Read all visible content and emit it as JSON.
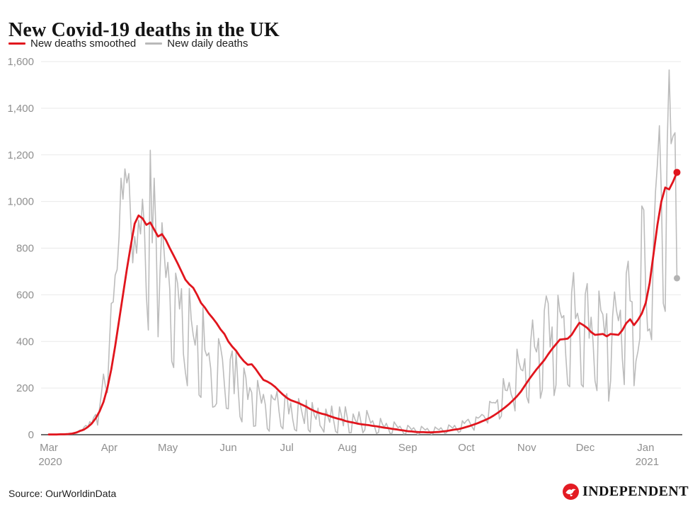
{
  "header": {
    "title": "New Covid-19 deaths in the UK"
  },
  "legend": [
    {
      "label": "New deaths smoothed",
      "color": "#e1151d"
    },
    {
      "label": "New daily deaths",
      "color": "#b9b9b9"
    }
  ],
  "footer": {
    "source": "Source: OurWorldinData",
    "brand": "INDEPENDENT",
    "brand_red": "#e31b23"
  },
  "colors": {
    "smoothed_line": "#e1151d",
    "daily_line": "#bcbcbc",
    "daily_dot": "#b3b3b3",
    "gridline": "#e9e9e9",
    "axis_line": "#3d3d3d",
    "tick_text": "#8f8f8f"
  },
  "chart_data": {
    "type": "line",
    "title": "New Covid-19 deaths in the UK",
    "xlabel": "",
    "ylabel": "",
    "x_unit": "days since 1 Mar 2020",
    "xlim_days": [
      -4,
      324
    ],
    "ylim": [
      0,
      1600
    ],
    "grid": "horizontal",
    "legend_position": "top-left",
    "yticks": [
      {
        "value": 0,
        "label": "0"
      },
      {
        "value": 200,
        "label": "200"
      },
      {
        "value": 400,
        "label": "400"
      },
      {
        "value": 600,
        "label": "600"
      },
      {
        "value": 800,
        "label": "800"
      },
      {
        "value": 1000,
        "label": "1,000"
      },
      {
        "value": 1200,
        "label": "1,200"
      },
      {
        "value": 1400,
        "label": "1,400"
      },
      {
        "value": 1600,
        "label": "1,600"
      }
    ],
    "xticks": [
      {
        "day": 0,
        "label": "Mar",
        "sub": "2020"
      },
      {
        "day": 31,
        "label": "Apr"
      },
      {
        "day": 61,
        "label": "May"
      },
      {
        "day": 92,
        "label": "Jun"
      },
      {
        "day": 122,
        "label": "Jul"
      },
      {
        "day": 153,
        "label": "Aug"
      },
      {
        "day": 184,
        "label": "Sep"
      },
      {
        "day": 214,
        "label": "Oct"
      },
      {
        "day": 245,
        "label": "Nov"
      },
      {
        "day": 275,
        "label": "Dec"
      },
      {
        "day": 306,
        "label": "Jan",
        "sub": "2021"
      }
    ],
    "series": [
      {
        "name": "New daily deaths",
        "color": "#bcbcbc",
        "width": 1.6,
        "start_day": 0,
        "step": 1,
        "end_dot": true,
        "dot_color": "#b3b3b3",
        "dot_r": 4.5,
        "values": [
          0,
          0,
          0,
          0,
          0,
          0,
          1,
          1,
          1,
          2,
          2,
          3,
          3,
          5,
          8,
          14,
          20,
          16,
          32,
          40,
          33,
          56,
          48,
          74,
          87,
          41,
          115,
          181,
          260,
          209,
          180,
          381,
          563,
          569,
          684,
          708,
          850,
          1100,
          1010,
          1140,
          1080,
          1120,
          917,
          737,
          850,
          778,
          920,
          861,
          1010,
          888,
          596,
          449,
          1220,
          823,
          1100,
          843,
          420,
          700,
          909,
          795,
          674,
          739,
          621,
          315,
          288,
          693,
          649,
          539,
          626,
          346,
          268,
          210,
          627,
          494,
          428,
          384,
          468,
          170,
          160,
          545,
          363,
          338,
          351,
          282,
          118,
          121,
          134,
          412,
          377,
          324,
          215,
          113,
          111,
          324,
          359,
          176,
          357,
          204,
          77,
          55,
          286,
          245,
          151,
          202,
          181,
          36,
          38,
          233,
          184,
          135,
          173,
          128,
          26,
          15,
          171,
          154,
          149,
          186,
          100,
          36,
          25,
          155,
          176,
          89,
          137,
          67,
          22,
          16,
          155,
          126,
          85,
          48,
          148,
          21,
          11,
          138,
          85,
          66,
          114,
          40,
          27,
          11,
          110,
          79,
          53,
          123,
          61,
          14,
          7,
          119,
          83,
          38,
          120,
          74,
          8,
          9,
          89,
          65,
          49,
          98,
          55,
          8,
          21,
          104,
          77,
          50,
          60,
          34,
          5,
          10,
          70,
          45,
          32,
          49,
          28,
          4,
          7,
          55,
          42,
          30,
          36,
          22,
          3,
          5,
          40,
          32,
          21,
          30,
          18,
          2,
          4,
          36,
          28,
          20,
          27,
          15,
          2,
          5,
          33,
          26,
          21,
          30,
          18,
          6,
          9,
          42,
          36,
          28,
          40,
          25,
          10,
          14,
          60,
          48,
          59,
          66,
          49,
          33,
          19,
          76,
          71,
          77,
          87,
          81,
          65,
          50,
          143,
          137,
          138,
          136,
          150,
          67,
          80,
          241,
          191,
          189,
          224,
          174,
          151,
          102,
          367,
          310,
          280,
          274,
          326,
          162,
          136,
          397,
          492,
          378,
          355,
          413,
          156,
          194,
          532,
          595,
          563,
          376,
          462,
          168,
          213,
          598,
          529,
          501,
          511,
          341,
          215,
          206,
          608,
          695,
          498,
          521,
          479,
          215,
          205,
          603,
          648,
          414,
          504,
          397,
          231,
          189,
          616,
          533,
          516,
          424,
          519,
          144,
          232,
          506,
          612,
          532,
          489,
          534,
          326,
          215,
          691,
          744,
          574,
          570,
          210,
          316,
          357,
          414,
          981,
          964,
          613,
          445,
          454,
          407,
          830,
          1041,
          1162,
          1325,
          1035,
          563,
          529,
          1243,
          1564,
          1248,
          1280,
          1295,
          671
        ]
      },
      {
        "name": "New deaths smoothed",
        "color": "#e1151d",
        "width": 2.8,
        "start_day": 0,
        "step": 2,
        "end_dot": true,
        "dot_color": "#e1151d",
        "dot_r": 5,
        "values": [
          1,
          1,
          1,
          2,
          2,
          3,
          5,
          9,
          16,
          22,
          33,
          48,
          70,
          100,
          140,
          200,
          280,
          380,
          490,
          600,
          710,
          810,
          905,
          940,
          928,
          900,
          910,
          880,
          850,
          860,
          835,
          800,
          768,
          735,
          700,
          665,
          645,
          630,
          600,
          565,
          545,
          520,
          500,
          478,
          452,
          432,
          400,
          378,
          360,
          335,
          315,
          300,
          302,
          282,
          258,
          235,
          228,
          218,
          205,
          188,
          172,
          158,
          148,
          142,
          136,
          128,
          120,
          110,
          102,
          95,
          90,
          86,
          80,
          74,
          69,
          65,
          59,
          55,
          52,
          48,
          45,
          43,
          41,
          38,
          36,
          33,
          30,
          28,
          25,
          23,
          20,
          18,
          15,
          14,
          12,
          11,
          11,
          10,
          10,
          11,
          12,
          14,
          16,
          19,
          22,
          24,
          28,
          33,
          38,
          44,
          50,
          57,
          64,
          72,
          82,
          93,
          105,
          118,
          132,
          148,
          165,
          185,
          210,
          235,
          258,
          280,
          300,
          320,
          345,
          368,
          388,
          408,
          410,
          412,
          428,
          455,
          480,
          470,
          458,
          440,
          428,
          430,
          432,
          422,
          432,
          430,
          428,
          448,
          478,
          495,
          470,
          492,
          520,
          565,
          650,
          775,
          900,
          1000,
          1060,
          1052,
          1085,
          1125
        ]
      }
    ]
  }
}
